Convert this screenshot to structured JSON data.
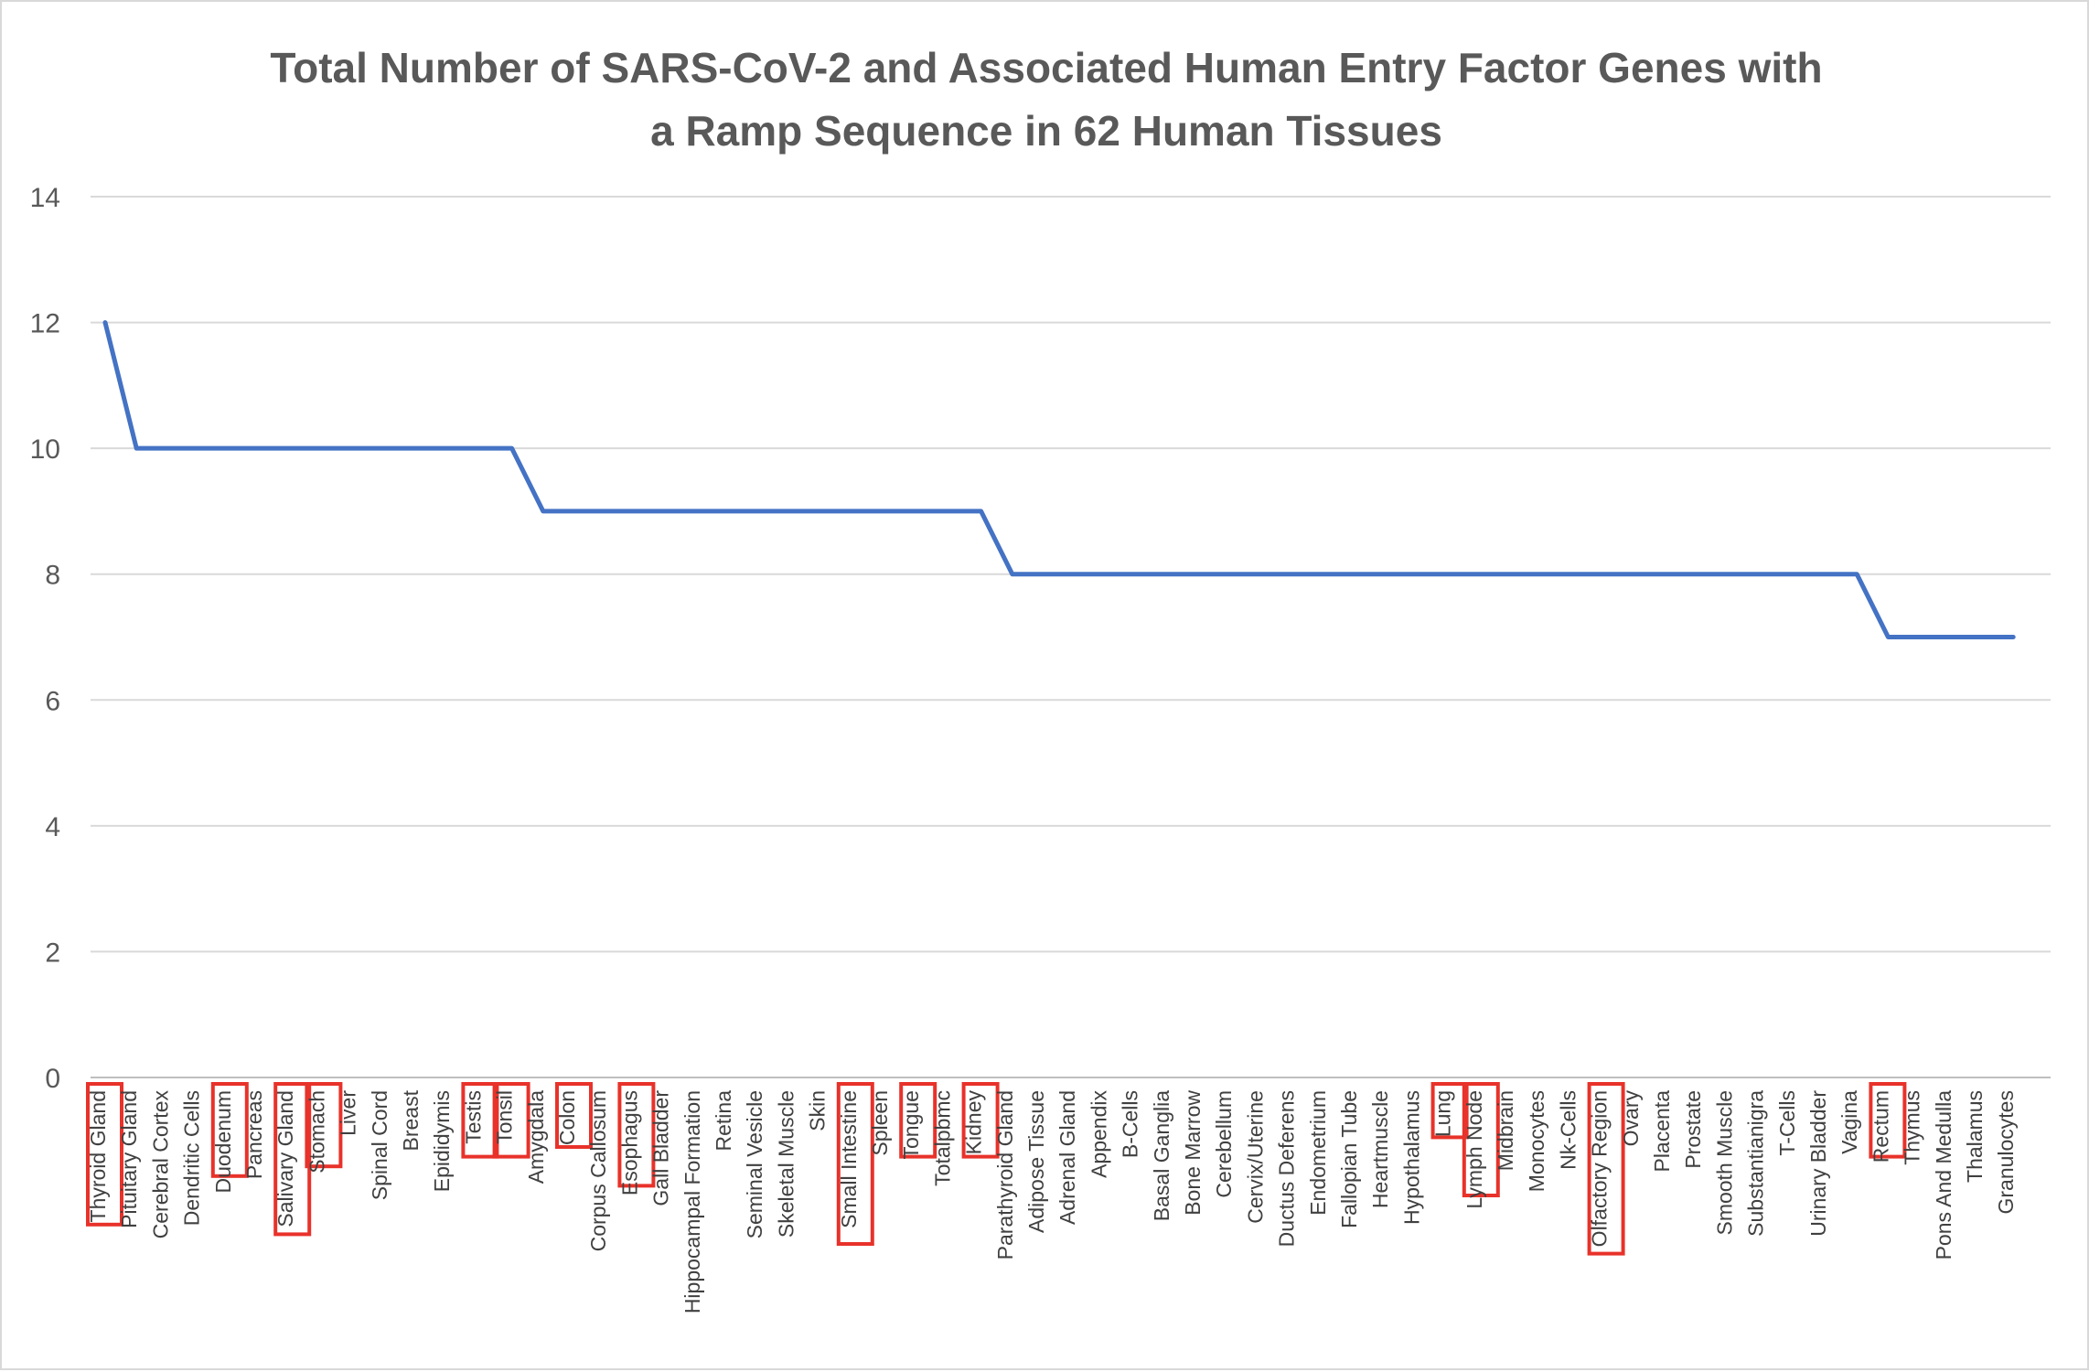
{
  "chart_data": {
    "type": "line",
    "title_lines": [
      "Total Number of SARS-CoV-2 and Associated Human Entry Factor Genes with",
      "a Ramp Sequence in 62 Human Tissues"
    ],
    "xlabel": "",
    "ylabel": "",
    "ylim": [
      0,
      14
    ],
    "yticks": [
      0,
      2,
      4,
      6,
      8,
      10,
      12,
      14
    ],
    "grid": true,
    "legend": "none",
    "line_color": "#4472C4",
    "highlight_color": "#E8322A",
    "categories": [
      "Thyroid Gland",
      "Pituitary Gland",
      "Cerebral Cortex",
      "Dendritic Cells",
      "Duodenum",
      "Pancreas",
      "Salivary Gland",
      "Stomach",
      "Liver",
      "Spinal Cord",
      "Breast",
      "Epididymis",
      "Testis",
      "Tonsil",
      "Amygdala",
      "Colon",
      "Corpus Callosum",
      "Esophagus",
      "Gall Bladder",
      "Hippocampal Formation",
      "Retina",
      "Seminal Vesicle",
      "Skeletal Muscle",
      "Skin",
      "Small Intestine",
      "Spleen",
      "Tongue",
      "Totalpbmc",
      "Kidney",
      "Parathyroid Gland",
      "Adipose Tissue",
      "Adrenal Gland",
      "Appendix",
      "B-Cells",
      "Basal Ganglia",
      "Bone Marrow",
      "Cerebellum",
      "Cervix/Uterine",
      "Ductus Deferens",
      "Endometrium",
      "Fallopian Tube",
      "Heartmuscle",
      "Hypothalamus",
      "Lung",
      "Lymph Node",
      "Midbrain",
      "Monocytes",
      "Nk-Cells",
      "Olfactory Region",
      "Ovary",
      "Placenta",
      "Prostate",
      "Smooth Muscle",
      "Substantianigra",
      "T-Cells",
      "Urinary Bladder",
      "Vagina",
      "Rectum",
      "Thymus",
      "Pons And Medulla",
      "Thalamus",
      "Granulocytes"
    ],
    "series": [
      {
        "values": [
          12,
          10,
          10,
          10,
          10,
          10,
          10,
          10,
          10,
          10,
          10,
          10,
          10,
          10,
          9,
          9,
          9,
          9,
          9,
          9,
          9,
          9,
          9,
          9,
          9,
          9,
          9,
          9,
          9,
          8,
          8,
          8,
          8,
          8,
          8,
          8,
          8,
          8,
          8,
          8,
          8,
          8,
          8,
          8,
          8,
          8,
          8,
          8,
          8,
          8,
          8,
          8,
          8,
          8,
          8,
          8,
          8,
          7,
          7,
          7,
          7,
          7
        ]
      }
    ],
    "highlighted_categories": [
      "Thyroid Gland",
      "Duodenum",
      "Salivary Gland",
      "Stomach",
      "Testis",
      "Tonsil",
      "Colon",
      "Esophagus",
      "Small Intestine",
      "Tongue",
      "Kidney",
      "Lung",
      "Lymph Node",
      "Olfactory Region",
      "Rectum"
    ]
  }
}
